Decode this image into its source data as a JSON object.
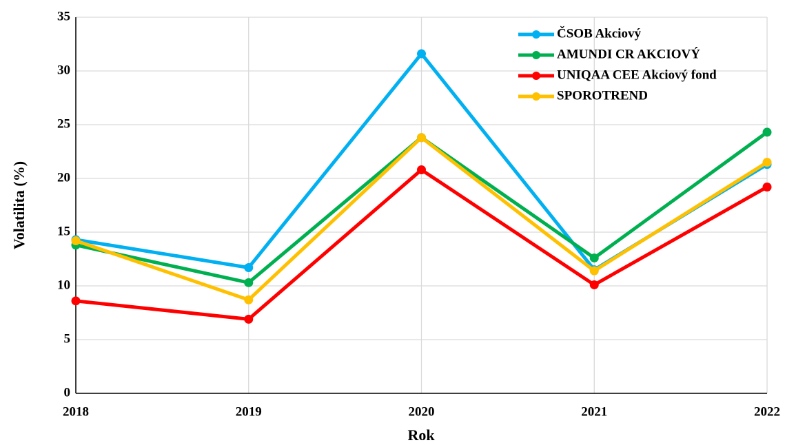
{
  "chart_data": {
    "type": "line",
    "x_label": "Rok",
    "y_label": "Volatilita (%)",
    "x": [
      2018,
      2019,
      2020,
      2021,
      2022
    ],
    "xlim": [
      2018,
      2022
    ],
    "xticks": [
      2018,
      2019,
      2020,
      2021,
      2022
    ],
    "ylim": [
      0,
      35
    ],
    "yticks": [
      0,
      5,
      10,
      15,
      20,
      25,
      30,
      35
    ],
    "grid": true,
    "legend": "upper right",
    "series": [
      {
        "name": "ČSOB Akciový",
        "color": "#00b0f0",
        "values": [
          14.3,
          11.7,
          31.6,
          11.5,
          21.3
        ]
      },
      {
        "name": "AMUNDI CR AKCIOVÝ",
        "color": "#00b050",
        "values": [
          13.8,
          10.3,
          23.8,
          12.6,
          24.3
        ]
      },
      {
        "name": "UNIQAA CEE Akciový fond",
        "color": "#ff0000",
        "values": [
          8.6,
          6.9,
          20.8,
          10.1,
          19.2
        ]
      },
      {
        "name": "SPOROTREND",
        "color": "#ffc000",
        "values": [
          14.2,
          8.7,
          23.8,
          11.4,
          21.5
        ]
      }
    ]
  }
}
